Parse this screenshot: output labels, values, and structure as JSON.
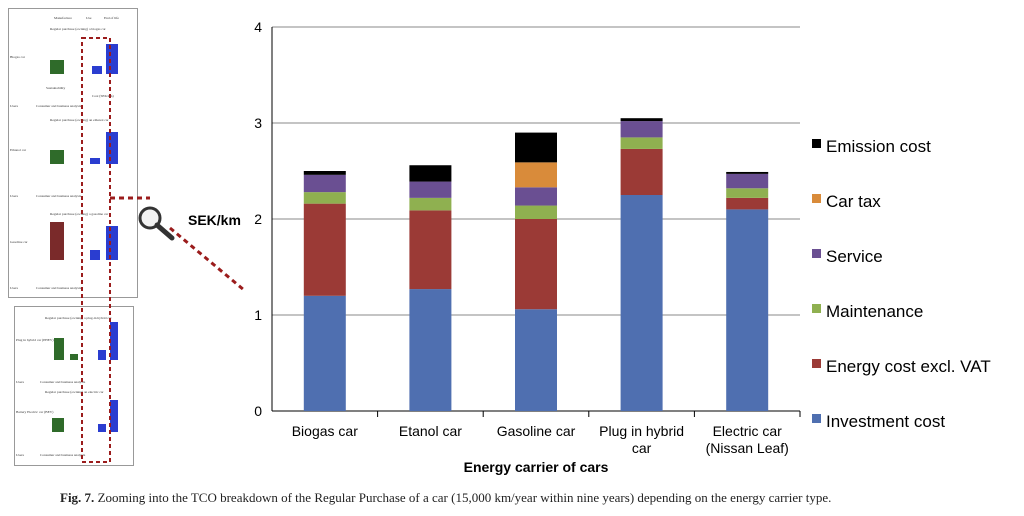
{
  "chart_data": {
    "type": "bar",
    "stacked": true,
    "ylabel": "SEK/km",
    "xlabel": "Energy carrier of cars",
    "ylim": [
      0,
      4
    ],
    "yticks": [
      "0",
      "1",
      "2",
      "3",
      "4"
    ],
    "grid": true,
    "legend_position": "right",
    "categories": [
      "Biogas car",
      "Etanol car",
      "Gasoline car",
      "Plug in hybrid car",
      "Electric car (Nissan Leaf)"
    ],
    "category_lines": [
      [
        "Biogas car"
      ],
      [
        "Etanol car"
      ],
      [
        "Gasoline car"
      ],
      [
        "Plug in hybrid",
        "car"
      ],
      [
        "Electric car",
        "(Nissan Leaf)"
      ]
    ],
    "series": [
      {
        "name": "Investment cost",
        "color": "#4f6fb0",
        "values": [
          1.2,
          1.27,
          1.06,
          2.25,
          2.1
        ]
      },
      {
        "name": "Energy cost  excl. VAT",
        "color": "#9b3a36",
        "values": [
          0.96,
          0.82,
          0.94,
          0.48,
          0.12
        ]
      },
      {
        "name": "Maintenance",
        "color": "#8fb050",
        "values": [
          0.12,
          0.13,
          0.14,
          0.12,
          0.1
        ]
      },
      {
        "name": "Service",
        "color": "#6a4f92",
        "values": [
          0.18,
          0.17,
          0.19,
          0.17,
          0.15
        ]
      },
      {
        "name": "Car tax",
        "color": "#d98b3a",
        "values": [
          0,
          0,
          0.26,
          0,
          0
        ]
      },
      {
        "name": "Emission cost",
        "color": "#000000",
        "values": [
          0.04,
          0.17,
          0.31,
          0.03,
          0.02
        ]
      }
    ]
  },
  "caption": {
    "label": "Fig. 7.",
    "text": " Zooming into the TCO breakdown of the Regular Purchase of a car (15,000 km/year within nine years) depending on the energy carrier type."
  },
  "thumbnail": {
    "legend": [
      "Manufacture",
      "Use",
      "End of life"
    ],
    "rows": [
      {
        "label": "Biogas car",
        "title": "Regular purchase (owning) a biogas car"
      },
      {
        "label": "Ethanol car",
        "title": "Regular purchase (owning) an ethanol car"
      },
      {
        "label": "Gasoline car",
        "title": "Regular purchase (owning) a gasoline car"
      },
      {
        "label": "Plug in hybrid car (PHEV)",
        "title": "Regular purchase (owning) a plug-in hybrid car"
      },
      {
        "label": "Battery Electric car (BEV)",
        "title": "Regular purchase (owning) an electric car"
      }
    ],
    "users_label": "Users",
    "users_text": "Consumer and business analysis",
    "sustainability_label": "Sustainability",
    "cost_label": "Cost (SEK/km)"
  }
}
